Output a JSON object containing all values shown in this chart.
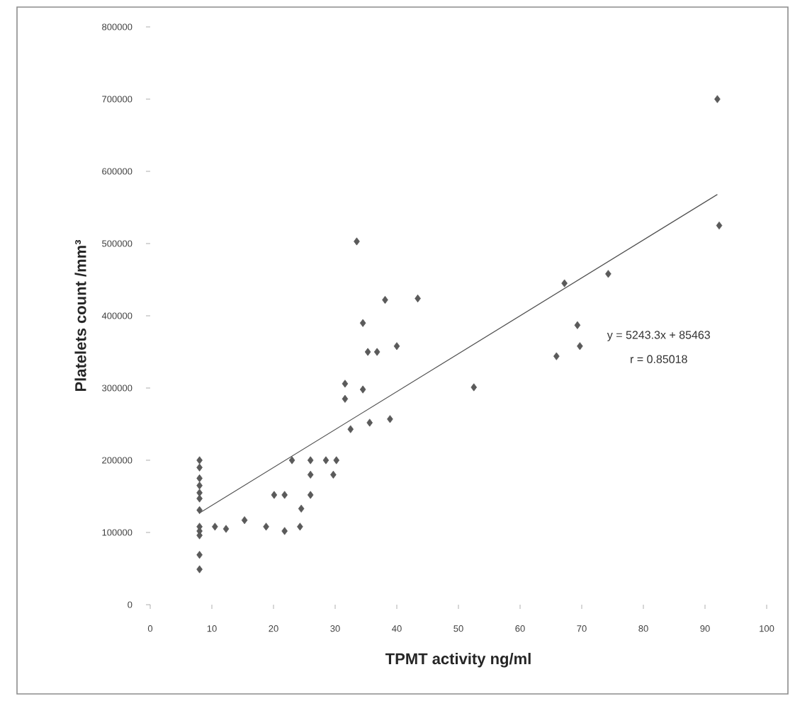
{
  "chart_data": {
    "type": "scatter",
    "xlabel": "TPMT activity ng/ml",
    "ylabel": "Platelets count /mm³",
    "xlim": [
      0,
      100
    ],
    "xticks": [
      0,
      10,
      20,
      30,
      40,
      50,
      60,
      70,
      80,
      90,
      100
    ],
    "ylim": [
      0,
      800000
    ],
    "yticks": [
      0,
      100000,
      200000,
      300000,
      400000,
      500000,
      600000,
      700000,
      800000
    ],
    "marker": "diamond",
    "annotations": [
      "y = 5243.3x + 85463",
      "r = 0.85018"
    ],
    "series": [
      {
        "color": "#5a5a5a",
        "x": [
          8,
          8,
          8,
          8,
          8,
          8,
          8,
          8,
          8,
          8,
          8,
          8,
          10.5,
          12.3,
          15.3,
          18.8,
          21.8,
          24.3,
          20.1,
          21.8,
          23,
          26,
          26,
          24.5,
          26,
          28.5,
          30.2,
          29.7,
          32.5,
          35.6,
          38.9,
          31.6,
          31.6,
          34.5,
          35.3,
          36.8,
          33.5,
          38.1,
          34.5,
          43.4,
          40,
          67.2,
          74.3,
          69.3,
          69.7,
          92,
          92.3,
          65.9,
          52.5
        ],
        "values": [
          200000,
          190000,
          175000,
          165000,
          155000,
          147000,
          131000,
          108000,
          102000,
          96000,
          69000,
          49000,
          108000,
          105000,
          117000,
          108000,
          102000,
          108000,
          152000,
          152000,
          200000,
          200000,
          180000,
          133000,
          152000,
          200000,
          200000,
          180000,
          243000,
          252000,
          257000,
          306000,
          285000,
          298000,
          350000,
          350000,
          503000,
          422000,
          390000,
          424000,
          358000,
          445000,
          458000,
          387000,
          358000,
          700000,
          525000,
          344000,
          301000
        ]
      },
      {
        "type": "line",
        "color": "#505050",
        "line_style": "solid",
        "marker": "none",
        "x": [
          8,
          92
        ],
        "values": [
          127000,
          568000
        ]
      }
    ]
  }
}
